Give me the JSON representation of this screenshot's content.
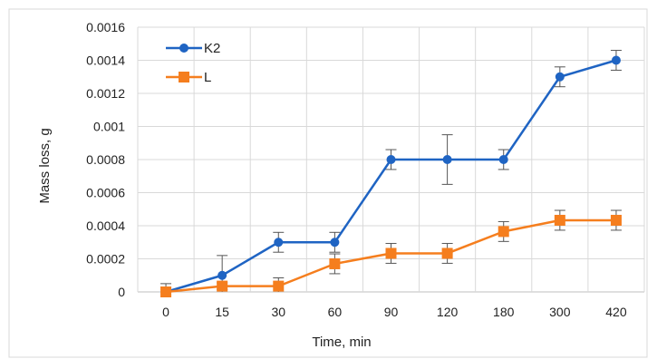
{
  "chart_data": {
    "type": "line",
    "categories": [
      "0",
      "15",
      "30",
      "60",
      "90",
      "120",
      "180",
      "300",
      "420"
    ],
    "xlabel": "Time, min",
    "ylabel": "Mass loss, g",
    "ylim": [
      0,
      0.0016
    ],
    "yticks": [
      "0",
      "0.0002",
      "0.0004",
      "0.0006",
      "0.0008",
      "0.001",
      "0.0012",
      "0.0014",
      "0.0016"
    ],
    "grid": true,
    "legend": "top-left",
    "series": [
      {
        "name": "K2",
        "color": "#1F64C3",
        "marker": "circle",
        "values": [
          0,
          0.0001,
          0.0003,
          0.0003,
          0.0008,
          0.0008,
          0.0008,
          0.0013,
          0.0014
        ],
        "errors": [
          5e-05,
          0.00012,
          6e-05,
          6e-05,
          6e-05,
          0.00015,
          6e-05,
          6e-05,
          6e-05
        ]
      },
      {
        "name": "L",
        "color": "#F57E1E",
        "marker": "square",
        "values": [
          0,
          3.5e-05,
          3.5e-05,
          0.00017,
          0.000233,
          0.000233,
          0.000365,
          0.000433,
          0.000433
        ],
        "errors": [
          3e-05,
          2e-05,
          5e-05,
          6e-05,
          6e-05,
          6e-05,
          6e-05,
          6e-05,
          6e-05
        ]
      }
    ]
  }
}
